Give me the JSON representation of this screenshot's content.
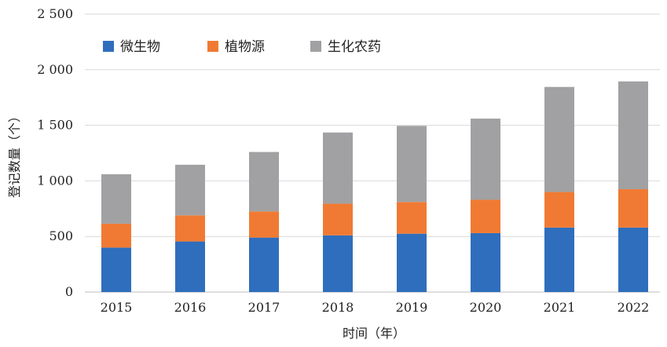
{
  "chart_data": {
    "type": "bar",
    "stacked": true,
    "title": "",
    "xlabel": "时间（年）",
    "ylabel": "登记数量（个）",
    "ylim": [
      0,
      2500
    ],
    "yticks": [
      0,
      500,
      1000,
      1500,
      2000,
      2500
    ],
    "ytick_labels": [
      "0",
      "500",
      "1 000",
      "1 500",
      "2 000",
      "2 500"
    ],
    "grid": true,
    "legend_position": "top-left",
    "categories": [
      "2015",
      "2016",
      "2017",
      "2018",
      "2019",
      "2020",
      "2021",
      "2022"
    ],
    "series": [
      {
        "name": "微生物",
        "color": "#2f6ebd",
        "values": [
          400,
          455,
          490,
          510,
          525,
          530,
          580,
          580
        ]
      },
      {
        "name": "植物源",
        "color": "#f07a33",
        "values": [
          215,
          235,
          235,
          285,
          285,
          300,
          320,
          345
        ]
      },
      {
        "name": "生化农药",
        "color": "#a1a1a3",
        "values": [
          445,
          455,
          535,
          640,
          685,
          730,
          945,
          970
        ]
      }
    ]
  }
}
